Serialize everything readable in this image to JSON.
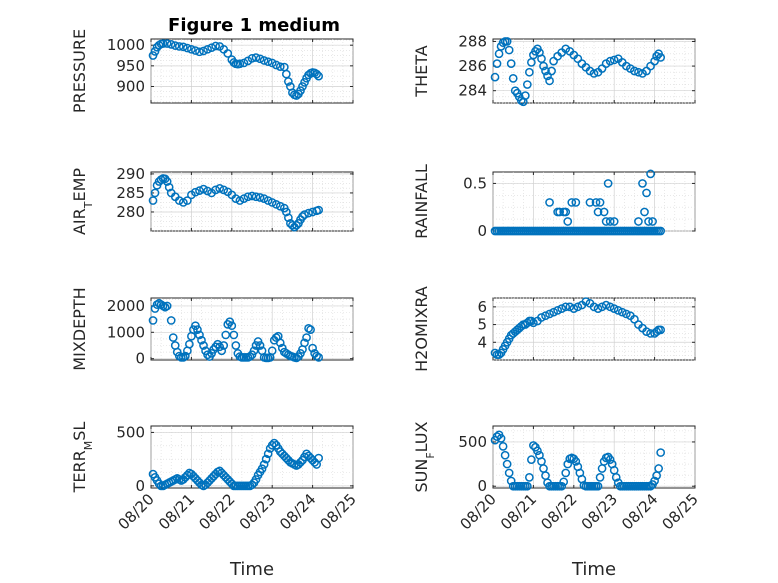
{
  "title": "Figure 1 medium",
  "colors": {
    "marker": "#0072BD",
    "axis": "#262626"
  },
  "chart_data": [
    {
      "type": "scatter",
      "id": "pressure",
      "ylabel": "PRESSURE",
      "ylim": [
        860,
        1015
      ],
      "yticks": [
        900,
        950,
        1000
      ],
      "xlabel": "",
      "xlim": [
        0,
        5
      ],
      "xticks": [],
      "grid": true,
      "x": [
        0.05,
        0.1,
        0.15,
        0.2,
        0.25,
        0.3,
        0.4,
        0.5,
        0.6,
        0.7,
        0.8,
        0.9,
        1.0,
        1.1,
        1.2,
        1.3,
        1.4,
        1.5,
        1.6,
        1.7,
        1.8,
        1.9,
        2.0,
        2.05,
        2.1,
        2.15,
        2.2,
        2.3,
        2.4,
        2.5,
        2.6,
        2.7,
        2.8,
        2.9,
        3.0,
        3.1,
        3.2,
        3.3,
        3.35,
        3.4,
        3.45,
        3.5,
        3.55,
        3.6,
        3.65,
        3.7,
        3.75,
        3.8,
        3.85,
        3.9,
        3.95,
        4.0,
        4.05,
        4.1,
        4.15
      ],
      "y": [
        975,
        985,
        995,
        1000,
        1003,
        1004,
        1004,
        1002,
        999,
        997,
        996,
        993,
        990,
        987,
        984,
        986,
        990,
        994,
        998,
        997,
        990,
        980,
        965,
        958,
        955,
        954,
        955,
        957,
        962,
        968,
        970,
        967,
        963,
        960,
        957,
        952,
        948,
        947,
        930,
        912,
        900,
        885,
        880,
        878,
        882,
        890,
        900,
        910,
        920,
        928,
        932,
        934,
        933,
        930,
        925
      ]
    },
    {
      "type": "scatter",
      "id": "theta",
      "ylabel": "THETA",
      "ylim": [
        283,
        288.2
      ],
      "yticks": [
        284,
        286,
        288
      ],
      "xlabel": "",
      "xlim": [
        0,
        5
      ],
      "xticks": [],
      "grid": true,
      "x": [
        0.05,
        0.1,
        0.15,
        0.2,
        0.25,
        0.3,
        0.35,
        0.4,
        0.45,
        0.5,
        0.55,
        0.6,
        0.65,
        0.7,
        0.75,
        0.8,
        0.85,
        0.9,
        0.95,
        1.0,
        1.05,
        1.1,
        1.15,
        1.2,
        1.25,
        1.3,
        1.35,
        1.4,
        1.45,
        1.5,
        1.6,
        1.7,
        1.8,
        1.9,
        2.0,
        2.1,
        2.2,
        2.3,
        2.4,
        2.5,
        2.6,
        2.7,
        2.8,
        2.9,
        3.0,
        3.1,
        3.2,
        3.3,
        3.4,
        3.5,
        3.6,
        3.7,
        3.8,
        3.9,
        4.0,
        4.05,
        4.1,
        4.15
      ],
      "y": [
        285.1,
        286.2,
        287,
        287.6,
        287.9,
        288,
        288,
        287.3,
        286.2,
        285,
        284,
        283.8,
        283.5,
        283.2,
        283.1,
        283.6,
        284.5,
        285.5,
        286.3,
        286.9,
        287.2,
        287.4,
        287.1,
        286.6,
        286,
        285.6,
        285.2,
        284.8,
        285.6,
        286.4,
        286.8,
        287.1,
        287.4,
        287.2,
        286.9,
        286.6,
        286.2,
        285.9,
        285.6,
        285.4,
        285.5,
        285.8,
        286.2,
        286.4,
        286.5,
        286.6,
        286.3,
        286,
        285.8,
        285.6,
        285.5,
        285.4,
        285.6,
        286,
        286.4,
        286.8,
        287.0,
        286.7
      ]
    },
    {
      "type": "scatter",
      "id": "airtemp",
      "ylabel": "AIR_TEMP",
      "ylabel_main": "AIR",
      "ylabel_sub": "T",
      "ylabel_rest": "EMP",
      "ylim": [
        275,
        290.5
      ],
      "yticks": [
        280,
        285,
        290
      ],
      "xlabel": "",
      "xlim": [
        0,
        5
      ],
      "xticks": [],
      "grid": true,
      "x": [
        0.05,
        0.1,
        0.15,
        0.2,
        0.25,
        0.3,
        0.35,
        0.4,
        0.45,
        0.5,
        0.6,
        0.7,
        0.8,
        0.9,
        1.0,
        1.1,
        1.2,
        1.3,
        1.4,
        1.5,
        1.6,
        1.7,
        1.8,
        1.9,
        2.0,
        2.1,
        2.2,
        2.3,
        2.4,
        2.5,
        2.6,
        2.7,
        2.8,
        2.9,
        3.0,
        3.1,
        3.2,
        3.3,
        3.35,
        3.4,
        3.45,
        3.5,
        3.55,
        3.6,
        3.65,
        3.7,
        3.75,
        3.8,
        3.9,
        4.0,
        4.1,
        4.15
      ],
      "y": [
        283,
        285,
        287,
        288,
        288.5,
        288.8,
        288.7,
        288,
        286.5,
        285,
        284,
        283,
        282.5,
        283,
        284.5,
        285.2,
        285.6,
        286,
        285.5,
        285,
        285.8,
        286.2,
        285.8,
        285.3,
        284.5,
        283.5,
        283,
        283.5,
        284,
        284.2,
        284,
        283.8,
        283.5,
        283,
        282.5,
        282,
        281.5,
        281,
        280,
        278.5,
        277,
        276.5,
        276,
        276.5,
        277,
        278,
        278.8,
        279.3,
        279.7,
        280,
        280.3,
        280.5
      ]
    },
    {
      "type": "scatter",
      "id": "rainfall",
      "ylabel": "RAINFALL",
      "ylim": [
        0,
        0.62
      ],
      "yticks": [
        0,
        0.5
      ],
      "xlabel": "",
      "xlim": [
        0,
        5
      ],
      "xticks": [],
      "grid": true,
      "x": [
        0.05,
        0.1,
        0.15,
        0.2,
        0.25,
        0.3,
        0.35,
        0.4,
        0.45,
        0.5,
        0.55,
        0.6,
        0.65,
        0.7,
        0.75,
        0.8,
        0.85,
        0.9,
        0.95,
        1.0,
        1.05,
        1.1,
        1.15,
        1.2,
        1.25,
        1.3,
        1.35,
        1.4,
        1.45,
        1.5,
        1.55,
        1.6,
        1.65,
        1.7,
        1.75,
        1.8,
        1.85,
        1.9,
        1.95,
        2.0,
        2.05,
        2.1,
        2.15,
        2.2,
        2.25,
        2.3,
        2.35,
        2.4,
        2.45,
        2.5,
        2.55,
        2.6,
        2.65,
        2.7,
        2.75,
        2.8,
        2.85,
        2.9,
        2.95,
        3.0,
        3.05,
        3.1,
        3.15,
        3.2,
        3.25,
        3.3,
        3.35,
        3.4,
        3.45,
        3.5,
        3.55,
        3.6,
        3.65,
        3.7,
        3.75,
        3.8,
        3.85,
        3.9,
        3.95,
        4.0,
        4.05,
        4.1,
        4.15,
        1.4,
        1.6,
        1.65,
        1.75,
        1.8,
        1.85,
        1.95,
        2.05,
        2.4,
        2.55,
        2.6,
        2.65,
        2.75,
        2.8,
        2.9,
        3.0,
        3.6,
        3.7,
        3.75,
        3.8,
        3.85,
        3.95,
        2.85,
        3.9
      ],
      "y": [
        0,
        0,
        0,
        0,
        0,
        0,
        0,
        0,
        0,
        0,
        0,
        0,
        0,
        0,
        0,
        0,
        0,
        0,
        0,
        0,
        0,
        0,
        0,
        0,
        0,
        0,
        0,
        0,
        0,
        0,
        0,
        0,
        0,
        0,
        0,
        0,
        0,
        0,
        0,
        0,
        0,
        0,
        0,
        0,
        0,
        0,
        0,
        0,
        0,
        0,
        0,
        0,
        0,
        0,
        0,
        0,
        0,
        0,
        0,
        0,
        0,
        0,
        0,
        0,
        0,
        0,
        0,
        0,
        0,
        0,
        0,
        0,
        0,
        0,
        0,
        0,
        0,
        0,
        0,
        0,
        0,
        0,
        0,
        0.3,
        0.2,
        0.2,
        0.2,
        0.2,
        0.1,
        0.3,
        0.3,
        0.3,
        0.3,
        0.2,
        0.3,
        0.2,
        0.1,
        0.1,
        0.1,
        0.1,
        0.5,
        0.2,
        0.4,
        0.1,
        0.1,
        0.5,
        0.6
      ]
    },
    {
      "type": "scatter",
      "id": "mixdepth",
      "ylabel": "MIXDEPTH",
      "ylim": [
        -50,
        2300
      ],
      "yticks": [
        0,
        1000,
        2000
      ],
      "xlabel": "",
      "xlim": [
        0,
        5
      ],
      "xticks": [],
      "grid": true,
      "x": [
        0.05,
        0.1,
        0.15,
        0.2,
        0.25,
        0.3,
        0.35,
        0.4,
        0.5,
        0.55,
        0.6,
        0.65,
        0.7,
        0.75,
        0.8,
        0.85,
        0.9,
        0.95,
        1.0,
        1.05,
        1.1,
        1.15,
        1.2,
        1.25,
        1.3,
        1.35,
        1.4,
        1.45,
        1.5,
        1.55,
        1.6,
        1.65,
        1.7,
        1.75,
        1.8,
        1.85,
        1.9,
        1.95,
        2.0,
        2.05,
        2.1,
        2.15,
        2.2,
        2.25,
        2.3,
        2.35,
        2.4,
        2.45,
        2.5,
        2.55,
        2.6,
        2.65,
        2.7,
        2.75,
        2.8,
        2.85,
        2.9,
        2.95,
        3.0,
        3.05,
        3.1,
        3.15,
        3.2,
        3.25,
        3.3,
        3.35,
        3.4,
        3.45,
        3.5,
        3.55,
        3.6,
        3.65,
        3.7,
        3.75,
        3.8,
        3.85,
        3.9,
        3.95,
        4.0,
        4.05,
        4.1,
        4.15
      ],
      "y": [
        1450,
        1900,
        2050,
        2100,
        2050,
        2000,
        1950,
        2000,
        1450,
        800,
        500,
        250,
        100,
        50,
        50,
        100,
        300,
        550,
        850,
        1100,
        1250,
        1100,
        900,
        700,
        500,
        300,
        150,
        80,
        200,
        350,
        450,
        550,
        450,
        300,
        500,
        900,
        1300,
        1400,
        1250,
        900,
        500,
        200,
        80,
        50,
        50,
        50,
        50,
        80,
        150,
        300,
        500,
        650,
        500,
        300,
        50,
        30,
        30,
        50,
        300,
        700,
        800,
        850,
        600,
        400,
        250,
        200,
        150,
        100,
        80,
        50,
        30,
        80,
        200,
        350,
        600,
        800,
        1150,
        1100,
        400,
        200,
        100,
        50
      ]
    },
    {
      "type": "scatter",
      "id": "h2omixra",
      "ylabel": "H2OMIXRA",
      "ylim": [
        3,
        6.5
      ],
      "yticks": [
        4,
        5,
        6
      ],
      "xlabel": "",
      "xlim": [
        0,
        5
      ],
      "xticks": [],
      "grid": true,
      "x": [
        0.05,
        0.1,
        0.15,
        0.2,
        0.25,
        0.3,
        0.35,
        0.4,
        0.45,
        0.5,
        0.55,
        0.6,
        0.65,
        0.7,
        0.75,
        0.8,
        0.85,
        0.9,
        0.95,
        1.0,
        1.1,
        1.2,
        1.3,
        1.4,
        1.5,
        1.6,
        1.7,
        1.8,
        1.9,
        2.0,
        2.1,
        2.2,
        2.3,
        2.4,
        2.5,
        2.6,
        2.7,
        2.8,
        2.9,
        3.0,
        3.1,
        3.2,
        3.3,
        3.4,
        3.5,
        3.6,
        3.7,
        3.8,
        3.9,
        4.0,
        4.05,
        4.1,
        4.15
      ],
      "y": [
        3.4,
        3.3,
        3.3,
        3.4,
        3.6,
        3.8,
        4.0,
        4.2,
        4.4,
        4.5,
        4.6,
        4.7,
        4.8,
        4.9,
        5.0,
        5.0,
        5.1,
        5.2,
        5.2,
        5.1,
        5.2,
        5.4,
        5.5,
        5.6,
        5.7,
        5.8,
        5.9,
        6.0,
        6.0,
        5.9,
        6.0,
        6.1,
        6.3,
        6.2,
        6.0,
        5.9,
        6.0,
        6.1,
        6.0,
        5.9,
        5.8,
        5.7,
        5.6,
        5.5,
        5.3,
        5.0,
        4.8,
        4.6,
        4.5,
        4.5,
        4.6,
        4.7,
        4.7
      ]
    },
    {
      "type": "scatter",
      "id": "terrmsl",
      "ylabel": "TERR_MSL",
      "ylabel_main": "TERR",
      "ylabel_sub": "M",
      "ylabel_rest": "SL",
      "ylim": [
        -20,
        560
      ],
      "yticks": [
        0,
        500
      ],
      "xlabel": "Time",
      "xlim": [
        0,
        5
      ],
      "xticks": [
        0,
        1,
        2,
        3,
        4,
        5
      ],
      "xticklabels": [
        "08/20",
        "08/21",
        "08/22",
        "08/23",
        "08/24",
        "08/25"
      ],
      "grid": true,
      "x": [
        0.05,
        0.1,
        0.15,
        0.2,
        0.25,
        0.3,
        0.35,
        0.4,
        0.45,
        0.5,
        0.55,
        0.6,
        0.65,
        0.7,
        0.75,
        0.8,
        0.85,
        0.9,
        0.95,
        1.0,
        1.05,
        1.1,
        1.15,
        1.2,
        1.25,
        1.3,
        1.35,
        1.4,
        1.45,
        1.5,
        1.55,
        1.6,
        1.65,
        1.7,
        1.75,
        1.8,
        1.85,
        1.9,
        1.95,
        2.0,
        2.05,
        2.1,
        2.15,
        2.2,
        2.25,
        2.3,
        2.35,
        2.4,
        2.45,
        2.5,
        2.55,
        2.6,
        2.65,
        2.7,
        2.75,
        2.8,
        2.85,
        2.9,
        2.95,
        3.0,
        3.05,
        3.1,
        3.15,
        3.2,
        3.25,
        3.3,
        3.35,
        3.4,
        3.45,
        3.5,
        3.55,
        3.6,
        3.65,
        3.7,
        3.75,
        3.8,
        3.85,
        3.9,
        3.95,
        4.0,
        4.05,
        4.1,
        4.15
      ],
      "y": [
        110,
        80,
        50,
        20,
        0,
        0,
        10,
        20,
        30,
        40,
        50,
        60,
        70,
        60,
        50,
        60,
        80,
        100,
        120,
        110,
        90,
        70,
        50,
        30,
        10,
        0,
        10,
        30,
        50,
        70,
        90,
        110,
        130,
        140,
        120,
        100,
        80,
        60,
        40,
        20,
        0,
        0,
        0,
        0,
        0,
        0,
        0,
        0,
        0,
        10,
        30,
        60,
        100,
        130,
        160,
        200,
        250,
        300,
        350,
        380,
        400,
        380,
        350,
        320,
        300,
        280,
        260,
        240,
        220,
        210,
        200,
        190,
        200,
        220,
        240,
        270,
        300,
        280,
        260,
        240,
        220,
        200,
        260
      ]
    },
    {
      "type": "scatter",
      "id": "sunflux",
      "ylabel": "SUN_FLUX",
      "ylabel_main": "SUN",
      "ylabel_sub": "F",
      "ylabel_rest": "LUX",
      "ylim": [
        -20,
        680
      ],
      "yticks": [
        0,
        500
      ],
      "xlabel": "Time",
      "xlim": [
        0,
        5
      ],
      "xticks": [
        0,
        1,
        2,
        3,
        4,
        5
      ],
      "xticklabels": [
        "08/20",
        "08/21",
        "08/22",
        "08/23",
        "08/24",
        "08/25"
      ],
      "grid": true,
      "x": [
        0.05,
        0.1,
        0.15,
        0.2,
        0.25,
        0.3,
        0.35,
        0.4,
        0.45,
        0.5,
        0.55,
        0.6,
        0.65,
        0.7,
        0.75,
        0.8,
        0.85,
        0.9,
        0.95,
        1.0,
        1.05,
        1.1,
        1.15,
        1.2,
        1.25,
        1.3,
        1.35,
        1.4,
        1.45,
        1.5,
        1.55,
        1.6,
        1.65,
        1.7,
        1.75,
        1.8,
        1.85,
        1.9,
        1.95,
        2.0,
        2.05,
        2.1,
        2.15,
        2.2,
        2.25,
        2.3,
        2.35,
        2.4,
        2.45,
        2.5,
        2.55,
        2.6,
        2.65,
        2.7,
        2.75,
        2.8,
        2.85,
        2.9,
        2.95,
        3.0,
        3.05,
        3.1,
        3.15,
        3.2,
        3.25,
        3.3,
        3.35,
        3.4,
        3.45,
        3.5,
        3.55,
        3.6,
        3.65,
        3.7,
        3.75,
        3.8,
        3.85,
        3.9,
        3.95,
        4.0,
        4.05,
        4.1,
        4.15
      ],
      "y": [
        520,
        560,
        580,
        540,
        450,
        350,
        250,
        150,
        60,
        0,
        0,
        0,
        0,
        0,
        0,
        0,
        0,
        100,
        300,
        460,
        440,
        400,
        350,
        280,
        200,
        120,
        40,
        0,
        0,
        0,
        0,
        0,
        0,
        0,
        50,
        150,
        250,
        310,
        320,
        310,
        280,
        220,
        150,
        80,
        10,
        0,
        0,
        0,
        0,
        0,
        0,
        0,
        100,
        200,
        280,
        320,
        330,
        300,
        250,
        180,
        100,
        40,
        0,
        0,
        0,
        0,
        0,
        0,
        0,
        0,
        0,
        0,
        0,
        0,
        0,
        0,
        0,
        0,
        20,
        60,
        120,
        200,
        380
      ]
    }
  ]
}
